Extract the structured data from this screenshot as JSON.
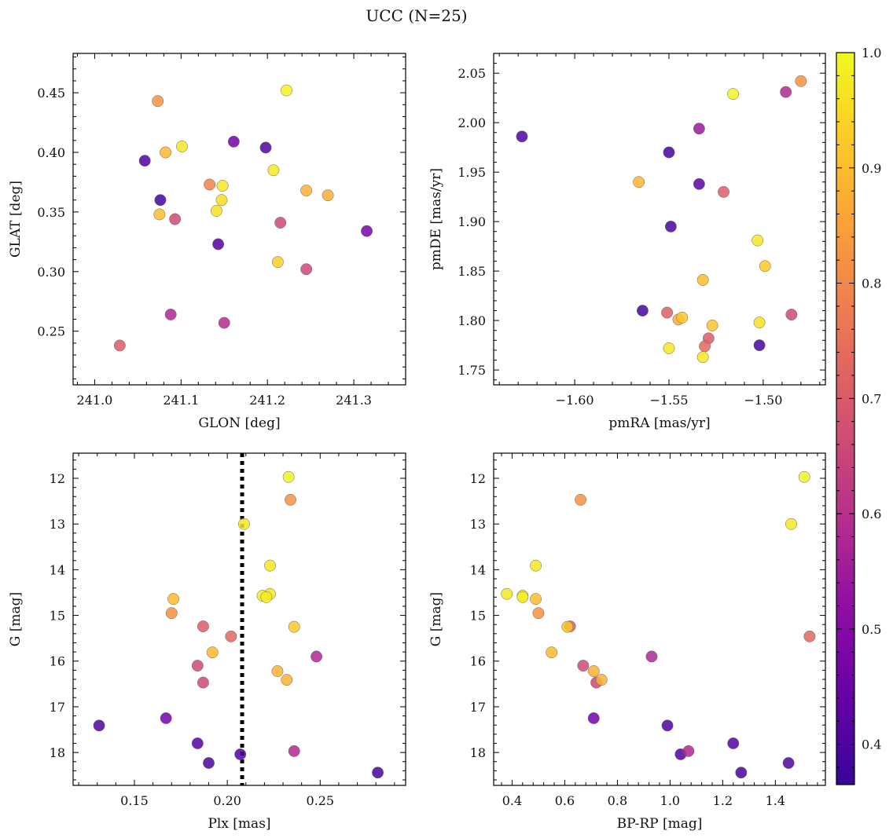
{
  "figure": {
    "title": "UCC (N=25)"
  },
  "colorbar": {
    "range": [
      0.365,
      1.0
    ],
    "ticks": [
      0.4,
      0.5,
      0.6,
      0.7,
      0.8,
      0.9,
      1.0
    ],
    "tick_labels": [
      "0.4",
      "0.5",
      "0.6",
      "0.7",
      "0.8",
      "0.9",
      "1.0"
    ],
    "colormap": "plasma"
  },
  "chart_data": [
    {
      "type": "scatter",
      "xlabel": "GLON [deg]",
      "ylabel": "GLAT [deg]",
      "xlim": [
        240.975,
        241.36
      ],
      "ylim": [
        0.205,
        0.483
      ],
      "y_inverted": false,
      "xticks": [
        241.0,
        241.1,
        241.2,
        241.3
      ],
      "xtick_labels": [
        "241.0",
        "241.1",
        "241.2",
        "241.3"
      ],
      "yticks": [
        0.25,
        0.3,
        0.35,
        0.4,
        0.45
      ],
      "ytick_labels": [
        "0.25",
        "0.30",
        "0.35",
        "0.40",
        "0.45"
      ],
      "x": [
        241.073,
        241.222,
        241.082,
        241.101,
        241.161,
        241.198,
        241.058,
        241.207,
        241.133,
        241.148,
        241.245,
        241.27,
        241.076,
        241.147,
        241.075,
        241.141,
        241.093,
        241.215,
        241.143,
        241.315,
        241.212,
        241.245,
        241.088,
        241.15,
        241.029
      ],
      "y": [
        0.443,
        0.452,
        0.4,
        0.405,
        0.409,
        0.404,
        0.393,
        0.385,
        0.373,
        0.372,
        0.368,
        0.364,
        0.36,
        0.36,
        0.348,
        0.351,
        0.344,
        0.341,
        0.323,
        0.334,
        0.308,
        0.302,
        0.264,
        0.257,
        0.238
      ],
      "color": [
        0.82,
        0.99,
        0.89,
        0.97,
        0.46,
        0.4,
        0.4,
        0.97,
        0.79,
        0.97,
        0.88,
        0.87,
        0.38,
        0.95,
        0.9,
        0.96,
        0.66,
        0.66,
        0.41,
        0.47,
        0.93,
        0.66,
        0.58,
        0.59,
        0.7
      ]
    },
    {
      "type": "scatter",
      "xlabel": "pmRA [mas/yr]",
      "ylabel": "pmDE [mas/yr]",
      "xlim": [
        -1.643,
        -1.467
      ],
      "ylim": [
        1.735,
        2.07
      ],
      "y_inverted": false,
      "xticks": [
        -1.6,
        -1.55,
        -1.5
      ],
      "xtick_labels": [
        "−1.60",
        "−1.55",
        "−1.50"
      ],
      "yticks": [
        1.75,
        1.8,
        1.85,
        1.9,
        1.95,
        2.0,
        2.05
      ],
      "ytick_labels": [
        "1.75",
        "1.80",
        "1.85",
        "1.90",
        "1.95",
        "2.00",
        "2.05"
      ],
      "x": [
        -1.48,
        -1.516,
        -1.488,
        -1.628,
        -1.534,
        -1.55,
        -1.534,
        -1.521,
        -1.566,
        -1.549,
        -1.503,
        -1.499,
        -1.532,
        -1.564,
        -1.551,
        -1.545,
        -1.543,
        -1.485,
        -1.502,
        -1.527,
        -1.55,
        -1.531,
        -1.529,
        -1.502,
        -1.532
      ],
      "y": [
        2.042,
        2.029,
        2.031,
        1.986,
        1.994,
        1.97,
        1.938,
        1.93,
        1.94,
        1.895,
        1.881,
        1.855,
        1.841,
        1.81,
        1.808,
        1.801,
        1.803,
        1.806,
        1.798,
        1.795,
        1.772,
        1.774,
        1.782,
        1.775,
        1.763
      ],
      "color": [
        0.82,
        0.99,
        0.58,
        0.4,
        0.54,
        0.38,
        0.42,
        0.71,
        0.89,
        0.39,
        0.97,
        0.92,
        0.9,
        0.39,
        0.71,
        0.87,
        0.92,
        0.66,
        0.96,
        0.91,
        0.97,
        0.73,
        0.7,
        0.39,
        0.97
      ]
    },
    {
      "type": "scatter",
      "xlabel": "Plx [mas]",
      "ylabel": "G [mag]",
      "xlim": [
        0.117,
        0.296
      ],
      "ylim": [
        11.45,
        18.72
      ],
      "y_inverted": true,
      "xticks": [
        0.15,
        0.2,
        0.25
      ],
      "xtick_labels": [
        "0.15",
        "0.20",
        "0.25"
      ],
      "yticks": [
        12,
        13,
        14,
        15,
        16,
        17,
        18
      ],
      "ytick_labels": [
        "12",
        "13",
        "14",
        "15",
        "16",
        "17",
        "18"
      ],
      "vline": 0.208,
      "x": [
        0.233,
        0.234,
        0.209,
        0.223,
        0.223,
        0.219,
        0.221,
        0.171,
        0.17,
        0.236,
        0.187,
        0.202,
        0.192,
        0.248,
        0.184,
        0.227,
        0.232,
        0.187,
        0.131,
        0.167,
        0.184,
        0.236,
        0.19,
        0.207,
        0.281
      ],
      "y": [
        11.97,
        12.47,
        13.0,
        13.91,
        14.53,
        14.57,
        14.6,
        14.64,
        14.95,
        15.25,
        15.24,
        15.46,
        15.81,
        15.9,
        16.1,
        16.22,
        16.41,
        16.47,
        17.41,
        17.25,
        17.8,
        17.97,
        18.23,
        18.04,
        18.44
      ],
      "color": [
        0.99,
        0.82,
        0.97,
        0.97,
        0.97,
        0.98,
        0.98,
        0.9,
        0.82,
        0.92,
        0.7,
        0.73,
        0.89,
        0.58,
        0.66,
        0.88,
        0.88,
        0.66,
        0.4,
        0.46,
        0.41,
        0.58,
        0.4,
        0.4,
        0.39
      ]
    },
    {
      "type": "scatter",
      "xlabel": "BP-RP [mag]",
      "ylabel": "G [mag]",
      "xlim": [
        0.33,
        1.59
      ],
      "ylim": [
        11.45,
        18.72
      ],
      "y_inverted": true,
      "xticks": [
        0.4,
        0.6,
        0.8,
        1.0,
        1.2,
        1.4
      ],
      "xtick_labels": [
        "0.4",
        "0.6",
        "0.8",
        "1.0",
        "1.2",
        "1.4"
      ],
      "yticks": [
        12,
        13,
        14,
        15,
        16,
        17,
        18
      ],
      "ytick_labels": [
        "12",
        "13",
        "14",
        "15",
        "16",
        "17",
        "18"
      ],
      "x": [
        1.51,
        1.46,
        0.66,
        0.49,
        0.38,
        0.44,
        0.44,
        0.49,
        0.5,
        0.62,
        0.61,
        1.53,
        0.55,
        0.93,
        0.67,
        0.71,
        0.74,
        0.72,
        0.71,
        0.99,
        1.04,
        1.07,
        1.24,
        1.27,
        1.45
      ],
      "y": [
        11.97,
        13.0,
        12.47,
        13.91,
        14.53,
        14.57,
        14.6,
        14.64,
        14.95,
        15.24,
        15.25,
        15.46,
        15.81,
        15.9,
        16.1,
        16.22,
        16.41,
        16.47,
        17.25,
        17.41,
        18.04,
        17.97,
        17.8,
        18.44,
        18.23
      ],
      "color": [
        0.99,
        0.97,
        0.82,
        0.97,
        0.97,
        0.98,
        0.98,
        0.9,
        0.82,
        0.7,
        0.92,
        0.73,
        0.89,
        0.58,
        0.66,
        0.88,
        0.88,
        0.66,
        0.46,
        0.4,
        0.4,
        0.58,
        0.41,
        0.39,
        0.4
      ]
    }
  ]
}
